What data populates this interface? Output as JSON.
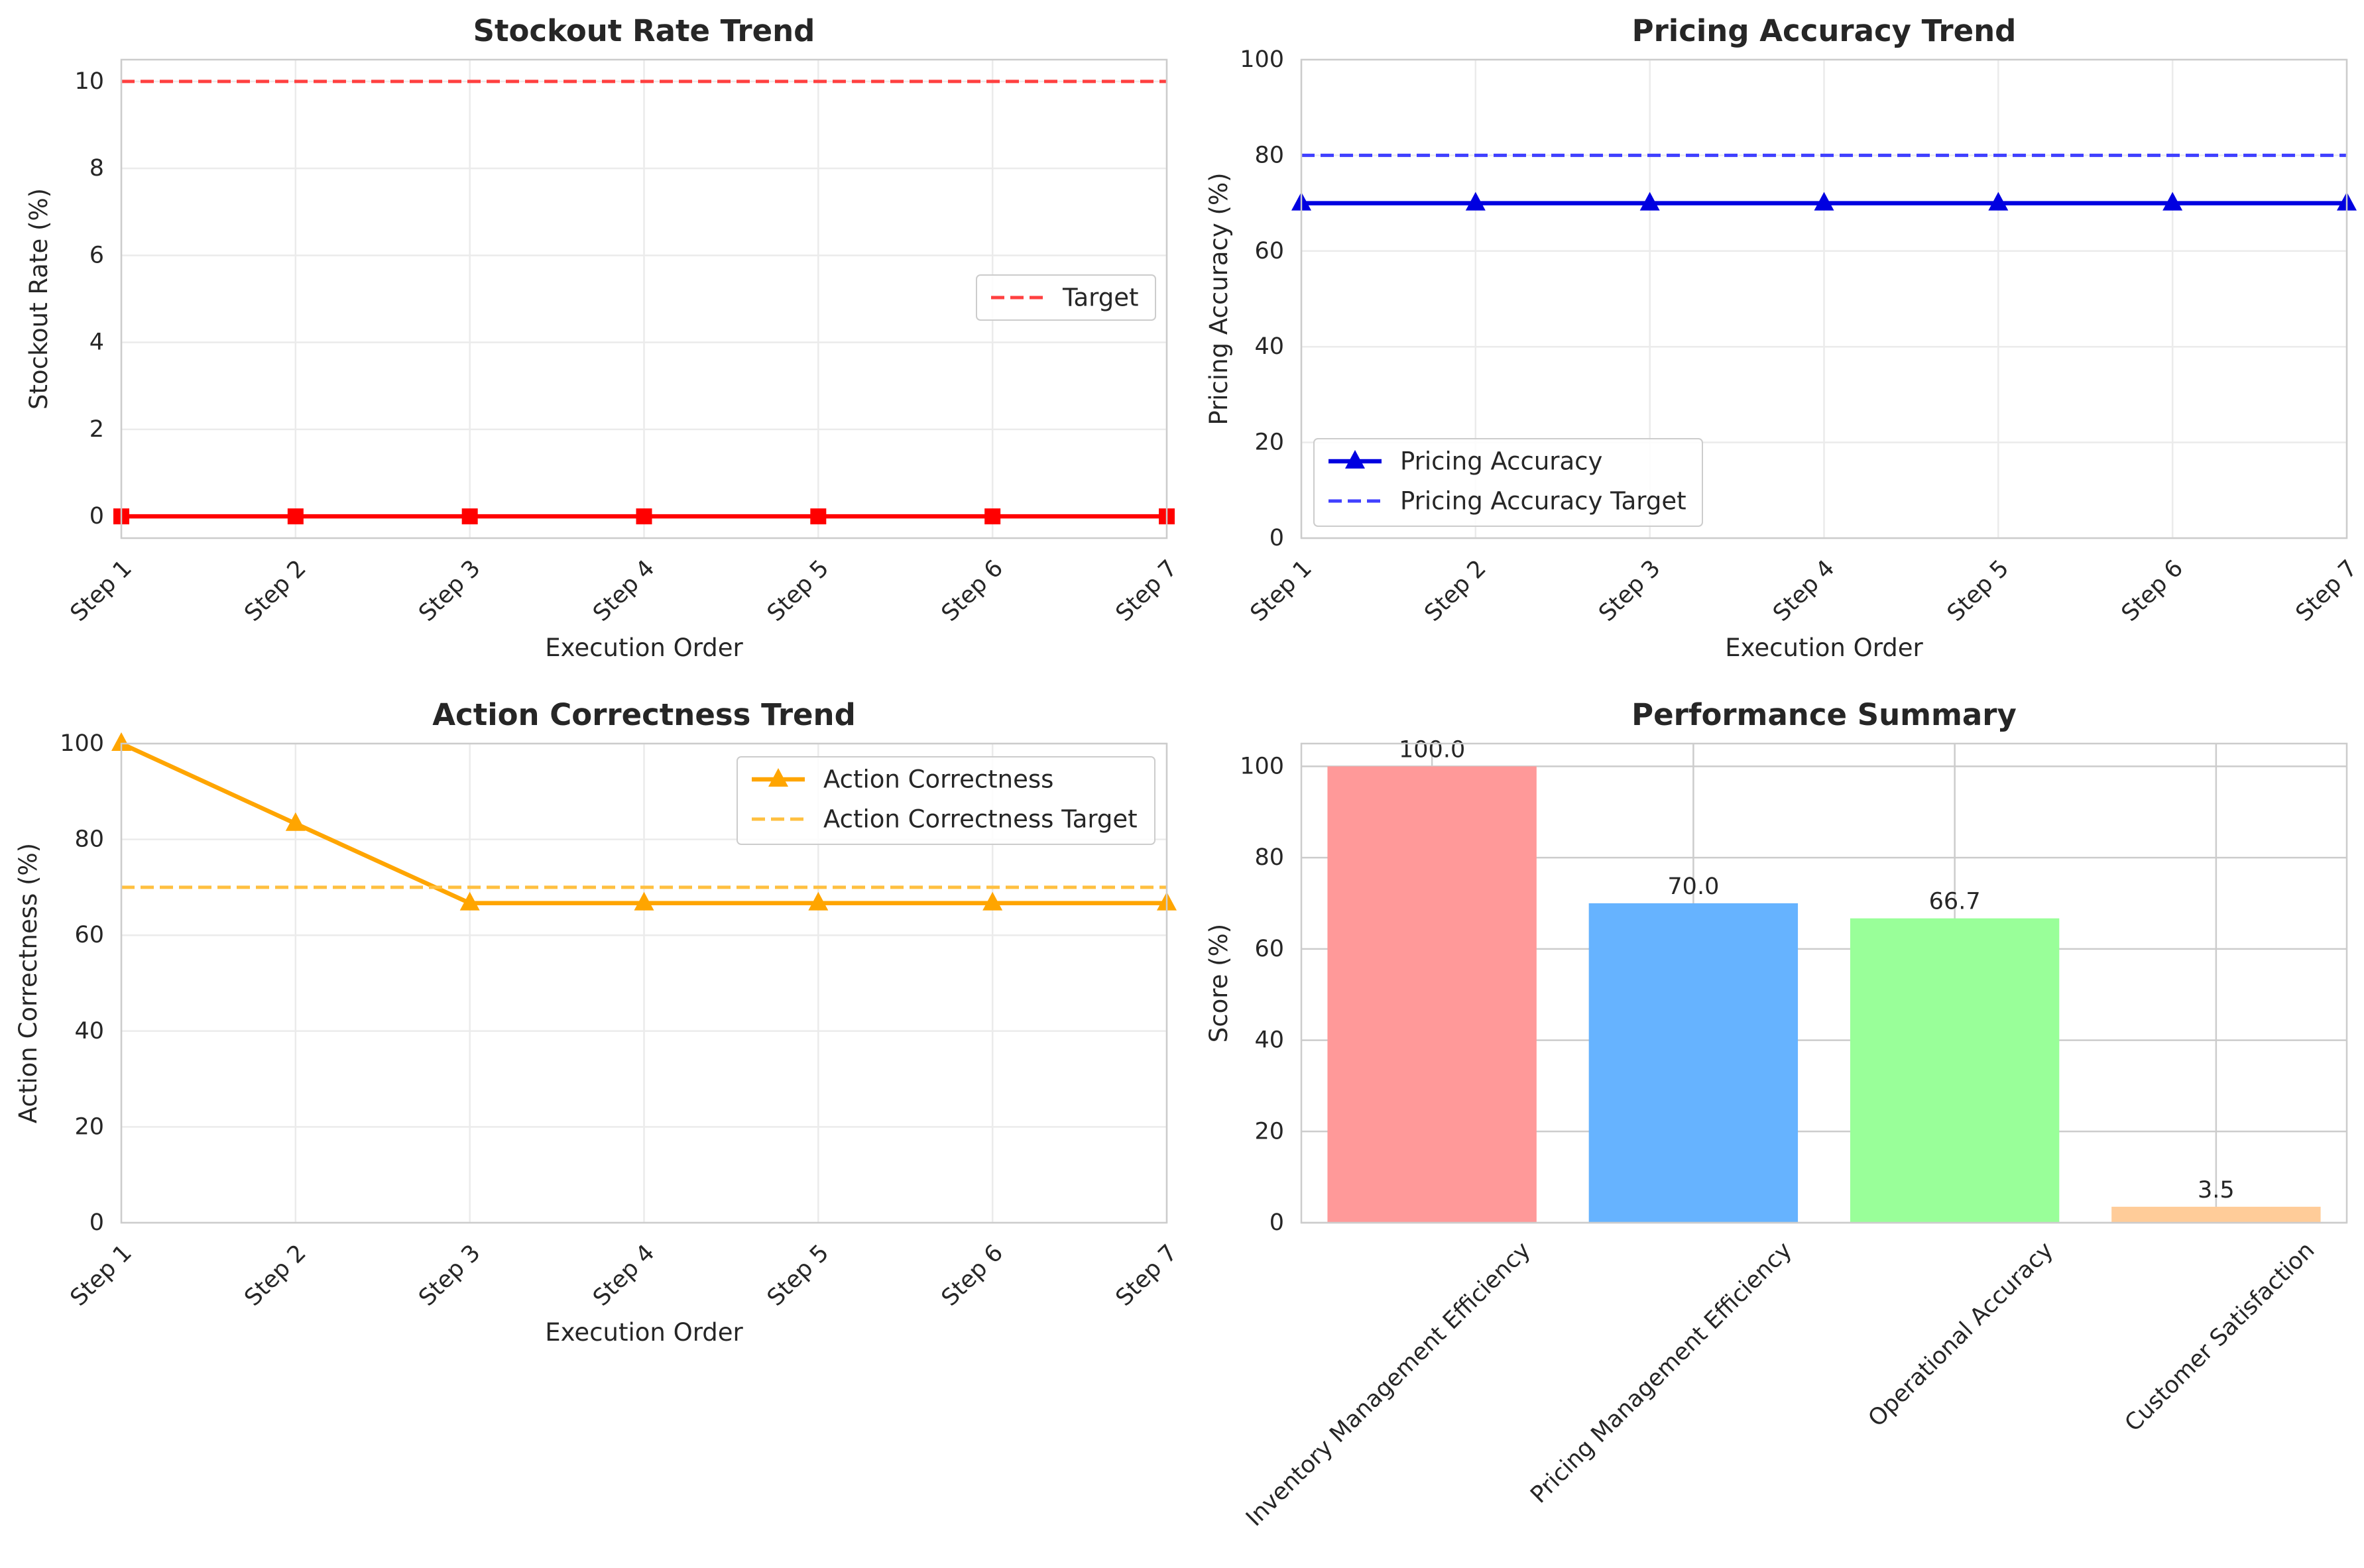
{
  "chart_data": [
    {
      "type": "line",
      "title": "Stockout Rate Trend",
      "xlabel": "Execution Order",
      "ylabel": "Stockout Rate (%)",
      "categories": [
        "Step 1",
        "Step 2",
        "Step 3",
        "Step 4",
        "Step 5",
        "Step 6",
        "Step 7"
      ],
      "ylim": [
        -0.5,
        10.5
      ],
      "yticks": [
        0,
        2,
        4,
        6,
        8,
        10
      ],
      "grid": true,
      "legend_position": "center-right",
      "series": [
        {
          "name": "",
          "values": [
            0,
            0,
            0,
            0,
            0,
            0,
            0
          ],
          "color": "#ff0000",
          "style": "solid",
          "marker": "square",
          "in_legend": false
        },
        {
          "name": "Target",
          "values": [
            10,
            10,
            10,
            10,
            10,
            10,
            10
          ],
          "color": "#ff4040",
          "style": "dashed",
          "marker": "none",
          "in_legend": true
        }
      ]
    },
    {
      "type": "line",
      "title": "Pricing Accuracy Trend",
      "xlabel": "Execution Order",
      "ylabel": "Pricing Accuracy (%)",
      "categories": [
        "Step 1",
        "Step 2",
        "Step 3",
        "Step 4",
        "Step 5",
        "Step 6",
        "Step 7"
      ],
      "ylim": [
        0,
        100
      ],
      "yticks": [
        0,
        20,
        40,
        60,
        80,
        100
      ],
      "grid": true,
      "legend_position": "lower-left",
      "series": [
        {
          "name": "Pricing Accuracy",
          "values": [
            70,
            70,
            70,
            70,
            70,
            70,
            70
          ],
          "color": "#0000e0",
          "style": "solid",
          "marker": "triangle",
          "in_legend": true
        },
        {
          "name": "Pricing Accuracy Target",
          "values": [
            80,
            80,
            80,
            80,
            80,
            80,
            80
          ],
          "color": "#4040ff",
          "style": "dashed",
          "marker": "none",
          "in_legend": true
        }
      ]
    },
    {
      "type": "line",
      "title": "Action Correctness Trend",
      "xlabel": "Execution Order",
      "ylabel": "Action Correctness (%)",
      "categories": [
        "Step 1",
        "Step 2",
        "Step 3",
        "Step 4",
        "Step 5",
        "Step 6",
        "Step 7"
      ],
      "ylim": [
        0,
        100
      ],
      "yticks": [
        0,
        20,
        40,
        60,
        80,
        100
      ],
      "grid": true,
      "legend_position": "upper-right",
      "series": [
        {
          "name": "Action Correctness",
          "values": [
            100,
            83.3,
            66.7,
            66.7,
            66.7,
            66.7,
            66.7
          ],
          "color": "#ffa500",
          "style": "solid",
          "marker": "triangle",
          "in_legend": true
        },
        {
          "name": "Action Correctness Target",
          "values": [
            70,
            70,
            70,
            70,
            70,
            70,
            70
          ],
          "color": "#ffc040",
          "style": "dashed",
          "marker": "none",
          "in_legend": true
        }
      ]
    },
    {
      "type": "bar",
      "title": "Performance Summary",
      "xlabel": "",
      "ylabel": "Score (%)",
      "categories": [
        "Inventory Management Efficiency",
        "Pricing Management Efficiency",
        "Operational Accuracy",
        "Customer Satisfaction"
      ],
      "values": [
        100.0,
        70.0,
        66.7,
        3.5
      ],
      "labels": [
        "100.0",
        "70.0",
        "66.7",
        "3.5"
      ],
      "colors": [
        "#ff9999",
        "#66b3ff",
        "#99ff99",
        "#ffcc99"
      ],
      "ylim": [
        0,
        105
      ],
      "yticks": [
        0,
        20,
        40,
        60,
        80,
        100
      ],
      "grid": true
    }
  ]
}
